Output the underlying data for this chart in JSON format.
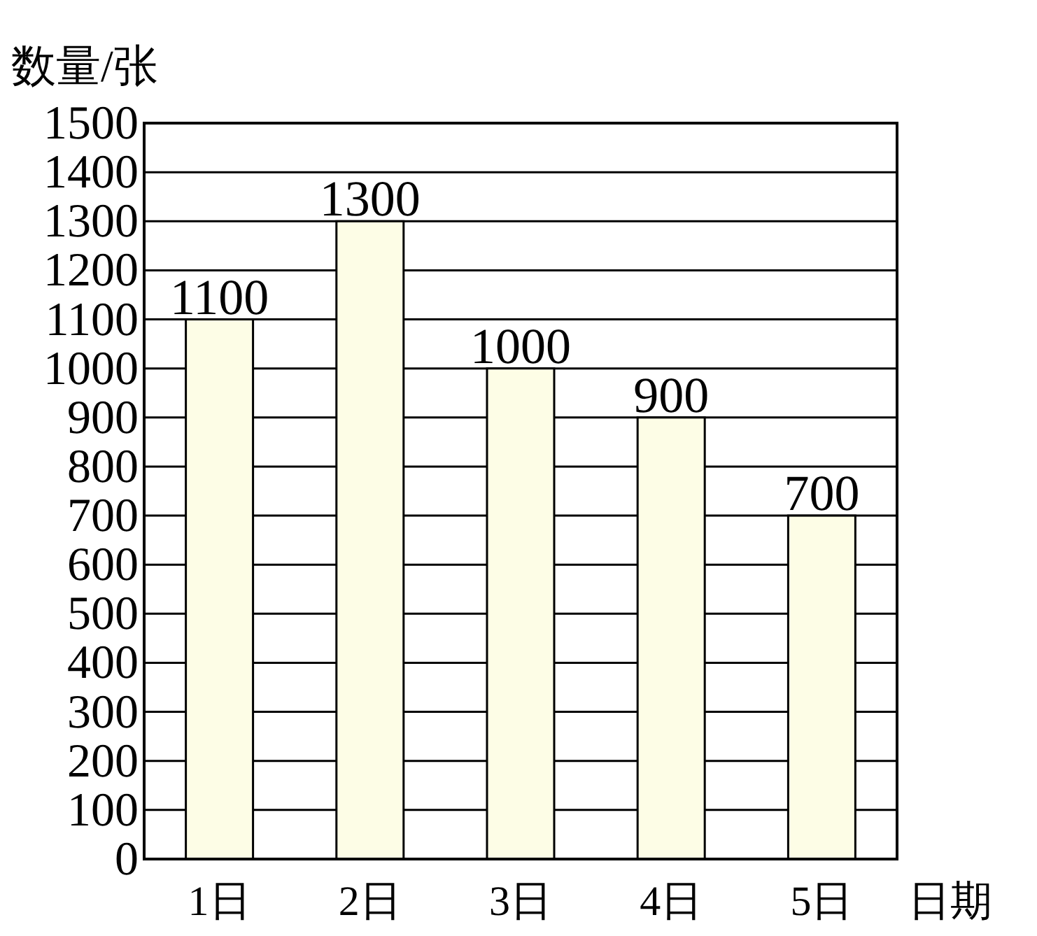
{
  "chart_data": {
    "type": "bar",
    "xlabel": "日期",
    "ylabel": "数量/张",
    "categories": [
      "1日",
      "2日",
      "3日",
      "4日",
      "5日"
    ],
    "values": [
      1100,
      1300,
      1000,
      900,
      700
    ],
    "color": "#fdfde6",
    "ylim": [
      0,
      1500
    ],
    "yticks": [
      0,
      100,
      200,
      300,
      400,
      500,
      600,
      700,
      800,
      900,
      1000,
      1100,
      1200,
      1300,
      1400,
      1500
    ],
    "grid": "y",
    "data_labels": true
  }
}
